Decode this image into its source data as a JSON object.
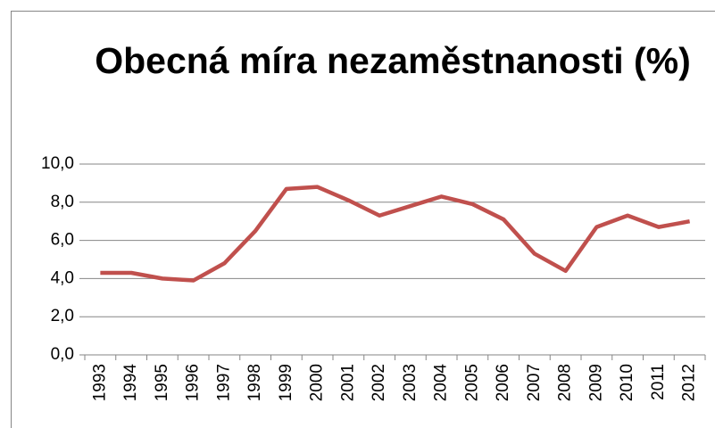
{
  "chart_data": {
    "type": "line",
    "title": "Obecná míra nezaměstnanosti (%)",
    "categories": [
      "1993",
      "1994",
      "1995",
      "1996",
      "1997",
      "1998",
      "1999",
      "2000",
      "2001",
      "2002",
      "2003",
      "2004",
      "2005",
      "2006",
      "2007",
      "2008",
      "2009",
      "2010",
      "2011",
      "2012"
    ],
    "series": [
      {
        "name": "Obecná míra nezaměstnanosti (%)",
        "color": "#c0504d",
        "values": [
          4.3,
          4.3,
          4.0,
          3.9,
          4.8,
          6.5,
          8.7,
          8.8,
          8.1,
          7.3,
          7.8,
          8.3,
          7.9,
          7.1,
          5.3,
          4.4,
          6.7,
          7.3,
          6.7,
          7.0
        ]
      }
    ],
    "ylim": [
      0,
      10
    ],
    "yticks": [
      {
        "value": 0,
        "label": "0,0"
      },
      {
        "value": 2,
        "label": "2,0"
      },
      {
        "value": 4,
        "label": "4,0"
      },
      {
        "value": 6,
        "label": "6,0"
      },
      {
        "value": 8,
        "label": "8,0"
      },
      {
        "value": 10,
        "label": "10,0"
      }
    ],
    "grid": true
  }
}
